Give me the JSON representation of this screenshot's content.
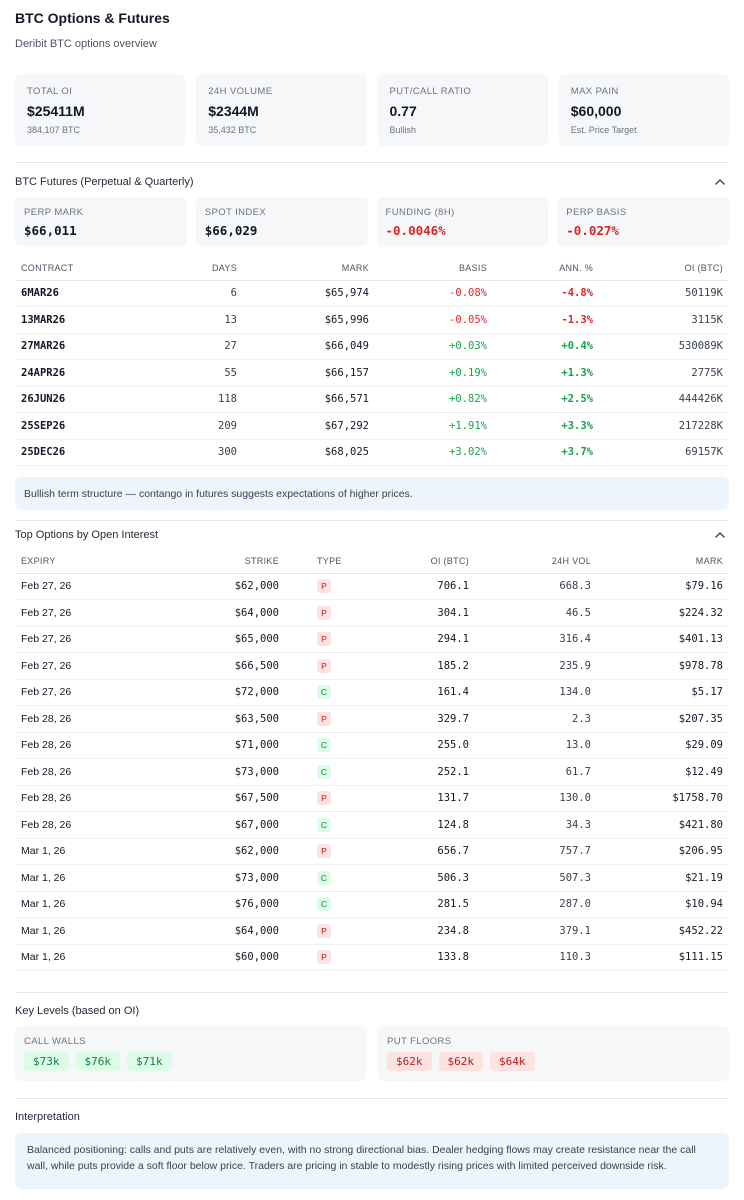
{
  "header": {
    "title": "BTC Options & Futures",
    "subtitle": "Deribit BTC options overview"
  },
  "stats": [
    {
      "label": "TOTAL OI",
      "value": "$25411M",
      "sub": "384,107 BTC"
    },
    {
      "label": "24H VOLUME",
      "value": "$2344M",
      "sub": "35,432 BTC"
    },
    {
      "label": "PUT/CALL RATIO",
      "value": "0.77",
      "sub": "Bullish"
    },
    {
      "label": "MAX PAIN",
      "value": "$60,000",
      "sub": "Est. Price Target"
    }
  ],
  "futures": {
    "title": "BTC Futures (Perpetual & Quarterly)",
    "cards": [
      {
        "label": "PERP MARK",
        "value": "$66,011"
      },
      {
        "label": "SPOT INDEX",
        "value": "$66,029"
      },
      {
        "label": "FUNDING (8H)",
        "value": "-0.0046%"
      },
      {
        "label": "PERP BASIS",
        "value": "-0.027%"
      }
    ],
    "columns": [
      "CONTRACT",
      "DAYS",
      "MARK",
      "BASIS",
      "ANN. %",
      "OI (BTC)"
    ],
    "rows": [
      {
        "contract": "6MAR26",
        "days": "6",
        "mark": "$65,974",
        "basis": "-0.08%",
        "ann": "-4.8%",
        "oi": "50119K",
        "sign": "neg"
      },
      {
        "contract": "13MAR26",
        "days": "13",
        "mark": "$65,996",
        "basis": "-0.05%",
        "ann": "-1.3%",
        "oi": "3115K",
        "sign": "neg"
      },
      {
        "contract": "27MAR26",
        "days": "27",
        "mark": "$66,049",
        "basis": "+0.03%",
        "ann": "+0.4%",
        "oi": "530089K",
        "sign": "pos"
      },
      {
        "contract": "24APR26",
        "days": "55",
        "mark": "$66,157",
        "basis": "+0.19%",
        "ann": "+1.3%",
        "oi": "2775K",
        "sign": "pos"
      },
      {
        "contract": "26JUN26",
        "days": "118",
        "mark": "$66,571",
        "basis": "+0.82%",
        "ann": "+2.5%",
        "oi": "444426K",
        "sign": "pos"
      },
      {
        "contract": "25SEP26",
        "days": "209",
        "mark": "$67,292",
        "basis": "+1.91%",
        "ann": "+3.3%",
        "oi": "217228K",
        "sign": "pos"
      },
      {
        "contract": "25DEC26",
        "days": "300",
        "mark": "$68,025",
        "basis": "+3.02%",
        "ann": "+3.7%",
        "oi": "69157K",
        "sign": "pos"
      }
    ],
    "note": "Bullish term structure — contango in futures suggests expectations of higher prices."
  },
  "options": {
    "title": "Top Options by Open Interest",
    "columns": [
      "EXPIRY",
      "STRIKE",
      "TYPE",
      "OI (BTC)",
      "24H VOL",
      "MARK"
    ],
    "rows": [
      {
        "expiry": "Feb 27, 26",
        "strike": "$62,000",
        "type": "P",
        "oi": "706.1",
        "vol": "668.3",
        "mark": "$79.16"
      },
      {
        "expiry": "Feb 27, 26",
        "strike": "$64,000",
        "type": "P",
        "oi": "304.1",
        "vol": "46.5",
        "mark": "$224.32"
      },
      {
        "expiry": "Feb 27, 26",
        "strike": "$65,000",
        "type": "P",
        "oi": "294.1",
        "vol": "316.4",
        "mark": "$401.13"
      },
      {
        "expiry": "Feb 27, 26",
        "strike": "$66,500",
        "type": "P",
        "oi": "185.2",
        "vol": "235.9",
        "mark": "$978.78"
      },
      {
        "expiry": "Feb 27, 26",
        "strike": "$72,000",
        "type": "C",
        "oi": "161.4",
        "vol": "134.0",
        "mark": "$5.17"
      },
      {
        "expiry": "Feb 28, 26",
        "strike": "$63,500",
        "type": "P",
        "oi": "329.7",
        "vol": "2.3",
        "mark": "$207.35"
      },
      {
        "expiry": "Feb 28, 26",
        "strike": "$71,000",
        "type": "C",
        "oi": "255.0",
        "vol": "13.0",
        "mark": "$29.09"
      },
      {
        "expiry": "Feb 28, 26",
        "strike": "$73,000",
        "type": "C",
        "oi": "252.1",
        "vol": "61.7",
        "mark": "$12.49"
      },
      {
        "expiry": "Feb 28, 26",
        "strike": "$67,500",
        "type": "P",
        "oi": "131.7",
        "vol": "130.0",
        "mark": "$1758.70"
      },
      {
        "expiry": "Feb 28, 26",
        "strike": "$67,000",
        "type": "C",
        "oi": "124.8",
        "vol": "34.3",
        "mark": "$421.80"
      },
      {
        "expiry": "Mar 1, 26",
        "strike": "$62,000",
        "type": "P",
        "oi": "656.7",
        "vol": "757.7",
        "mark": "$206.95"
      },
      {
        "expiry": "Mar 1, 26",
        "strike": "$73,000",
        "type": "C",
        "oi": "506.3",
        "vol": "507.3",
        "mark": "$21.19"
      },
      {
        "expiry": "Mar 1, 26",
        "strike": "$76,000",
        "type": "C",
        "oi": "281.5",
        "vol": "287.0",
        "mark": "$10.94"
      },
      {
        "expiry": "Mar 1, 26",
        "strike": "$64,000",
        "type": "P",
        "oi": "234.8",
        "vol": "379.1",
        "mark": "$452.22"
      },
      {
        "expiry": "Mar 1, 26",
        "strike": "$60,000",
        "type": "P",
        "oi": "133.8",
        "vol": "110.3",
        "mark": "$111.15"
      }
    ]
  },
  "key_levels": {
    "title": "Key Levels (based on OI)",
    "call_label": "CALL WALLS",
    "calls": [
      "$73k",
      "$76k",
      "$71k"
    ],
    "put_label": "PUT FLOORS",
    "puts": [
      "$62k",
      "$62k",
      "$64k"
    ]
  },
  "interpretation": {
    "title": "Interpretation",
    "text": "Balanced positioning: calls and puts are relatively even, with no strong directional bias. Dealer hedging flows may create resistance near the call wall, while puts provide a soft floor below price. Traders are pricing in stable to modestly rising prices with limited perceived downside risk."
  },
  "colors": {
    "positive": "#16a34a",
    "negative": "#dc2626",
    "note_bg": "#eef4fc",
    "card_bg": "#f6f7f9"
  },
  "icons": {
    "collapse": "chevron-up-icon"
  }
}
